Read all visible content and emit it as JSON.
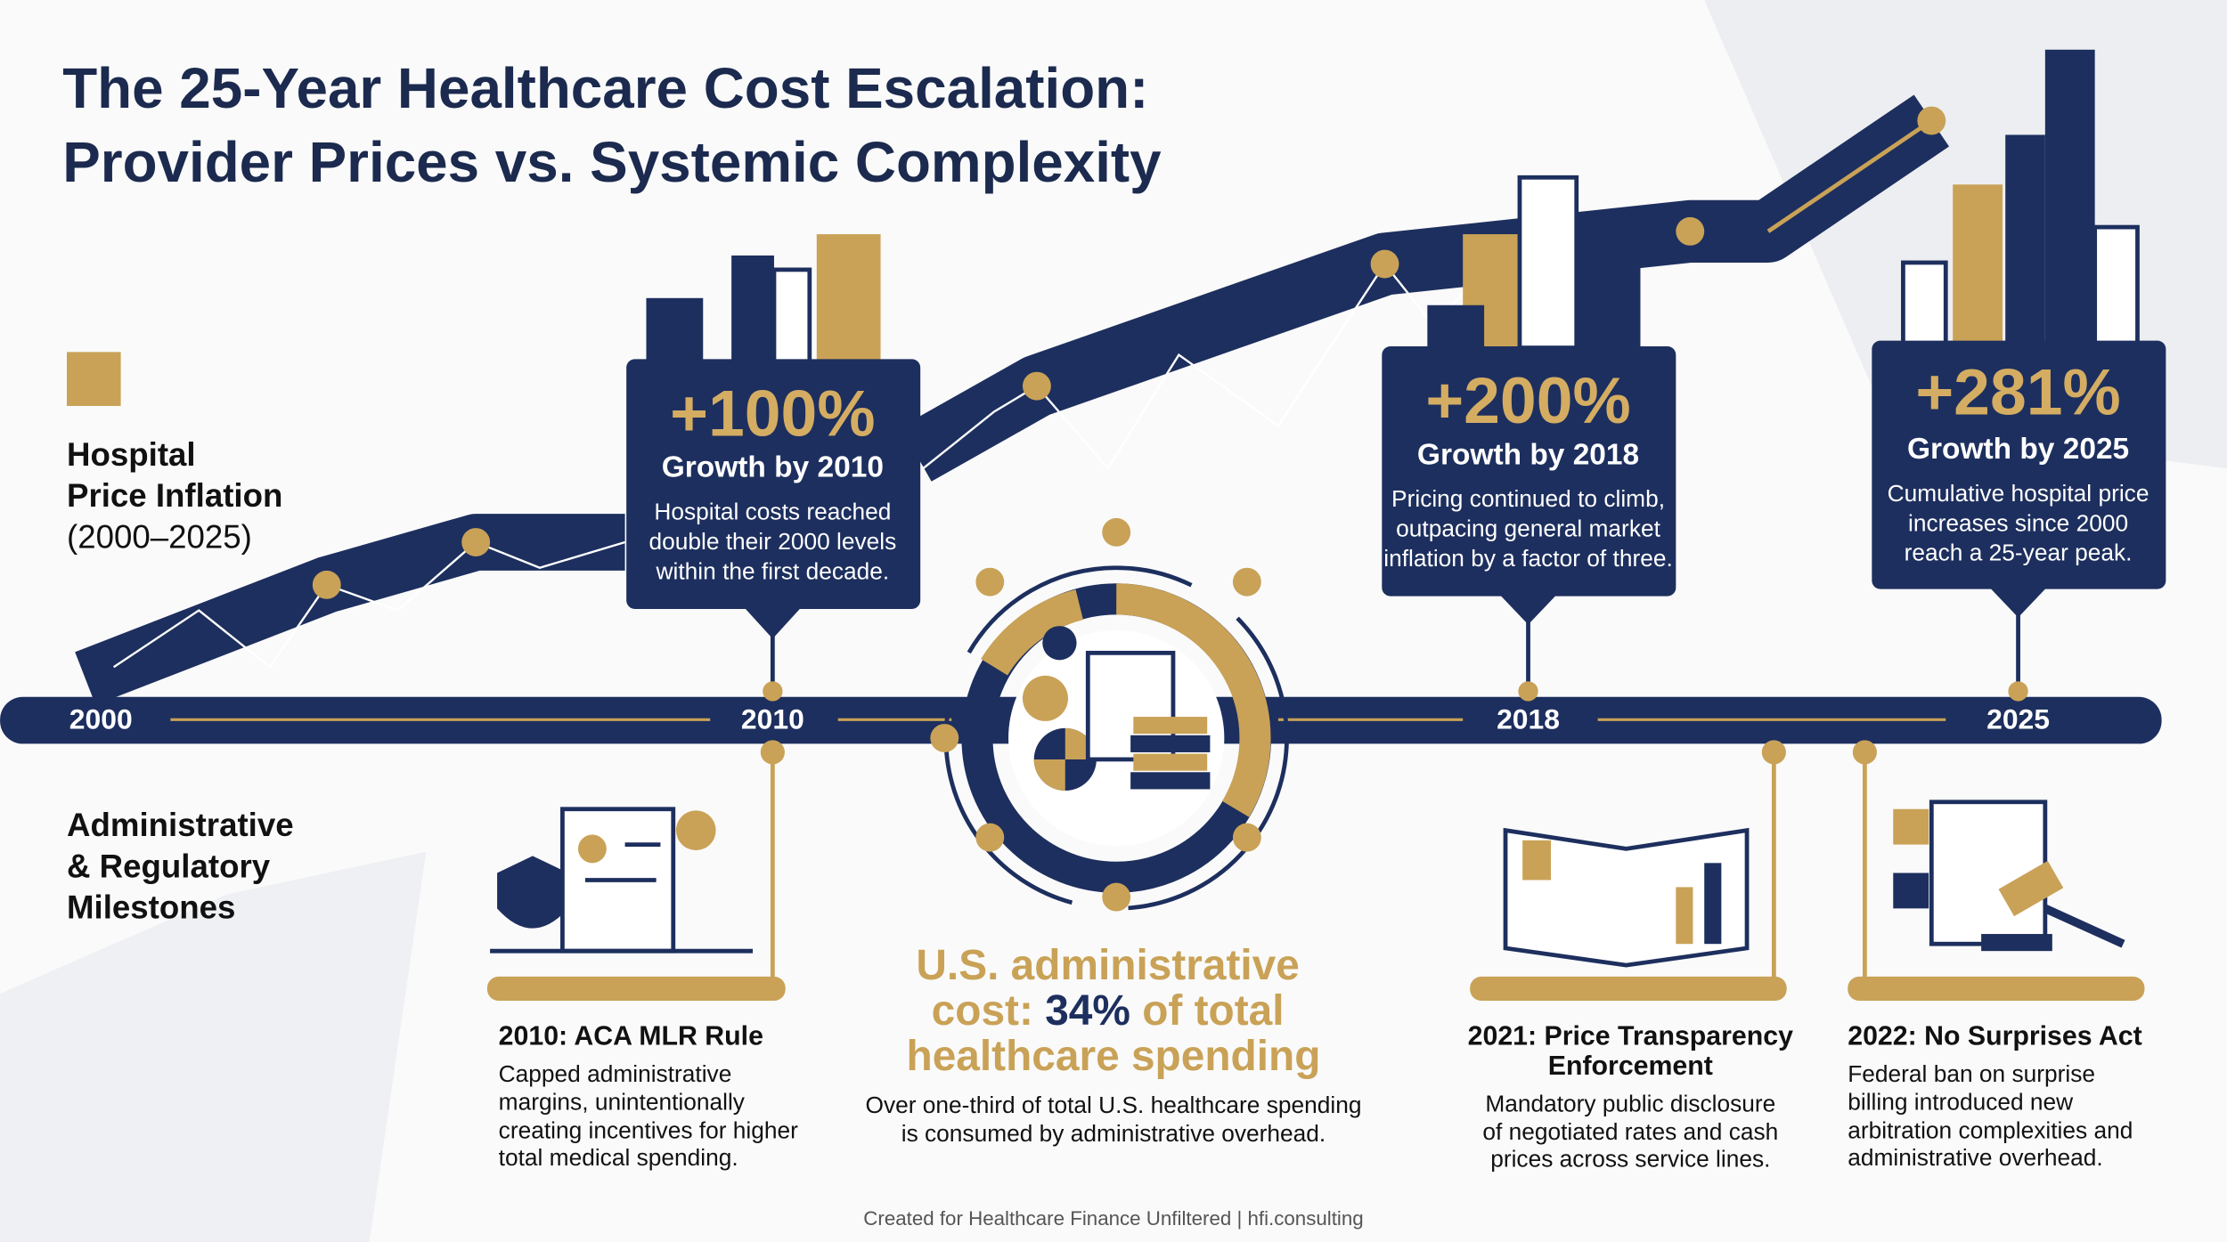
{
  "header": {
    "title": [
      "The 25-Year Healthcare Cost Escalation:",
      "Provider Prices vs. Systemic Complexity"
    ]
  },
  "legend": {
    "price": [
      "Hospital",
      "Price Inflation",
      "(2000–2025)"
    ],
    "admin": [
      "Administrative",
      "& Regulatory",
      "Milestones"
    ]
  },
  "timeline": {
    "years": [
      "2000",
      "2010",
      "2018",
      "2025"
    ]
  },
  "callouts": [
    {
      "value": "+100%",
      "label": "Growth by 2010",
      "text": [
        "Hospital costs reached",
        "double their 2000 levels",
        "within the first decade."
      ]
    },
    {
      "value": "+200%",
      "label": "Growth by 2018",
      "text": [
        "Pricing continued to climb,",
        "outpacing general market",
        "inflation by a factor of three."
      ]
    },
    {
      "value": "+281%",
      "label": "Growth by 2025",
      "text": [
        "Cumulative hospital price",
        "increases since 2000",
        "reach a 25-year peak."
      ]
    }
  ],
  "center": {
    "headline": [
      "U.S. administrative",
      "cost:",
      "34%",
      "of total",
      "healthcare spending"
    ],
    "text": [
      "Over one-third of total U.S. healthcare spending",
      "is consumed by administrative overhead."
    ]
  },
  "milestones": [
    {
      "title": [
        "2010: ACA MLR Rule"
      ],
      "text": [
        "Capped administrative",
        "margins, unintentionally",
        "creating incentives for higher",
        "total medical spending."
      ]
    },
    {
      "title": [
        "2021: Price Transparency",
        "Enforcement"
      ],
      "text": [
        "Mandatory public disclosure",
        "of negotiated rates and cash",
        "prices across service lines."
      ]
    },
    {
      "title": [
        "2022: No Surprises Act"
      ],
      "text": [
        "Federal ban on surprise",
        "billing introduced new",
        "arbitration complexities and",
        "administrative overhead."
      ]
    }
  ],
  "footer": "Created for Healthcare Finance Unfiltered | hfi.consulting"
}
